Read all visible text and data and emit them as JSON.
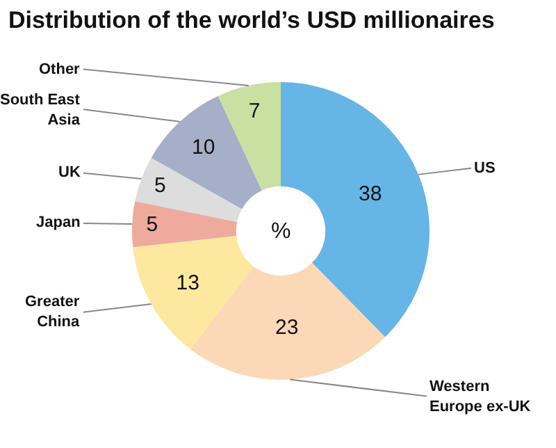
{
  "chart_data": {
    "type": "donut",
    "title": "Distribution of the world’s USD millionaires",
    "categories": [
      "US",
      "Western Europe ex-UK",
      "Greater China",
      "Japan",
      "UK",
      "South East Asia",
      "Other"
    ],
    "values": [
      38,
      23,
      13,
      5,
      5,
      10,
      7
    ],
    "colors": [
      "#65b5e6",
      "#fbd8b6",
      "#fee79f",
      "#eeaa9c",
      "#dddddd",
      "#a5afc7",
      "#c9e0a3"
    ],
    "data_labels": true,
    "legend": false,
    "annotations": [
      "%"
    ]
  }
}
